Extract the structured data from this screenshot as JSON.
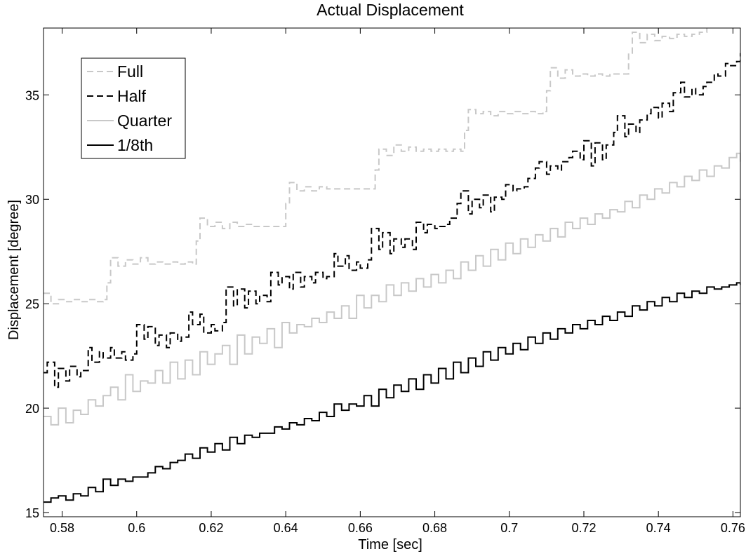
{
  "chart_data": {
    "type": "line",
    "title": "Actual Displacement",
    "xlabel": "Time [sec]",
    "ylabel": "Displacement [degree]",
    "xlim": [
      0.575,
      0.762
    ],
    "ylim": [
      14.8,
      38.2
    ],
    "xticks": [
      0.58,
      0.6,
      0.62,
      0.64,
      0.66,
      0.68,
      0.7,
      0.72,
      0.74,
      0.76
    ],
    "xtick_labels": [
      "0.58",
      "0.6",
      "0.62",
      "0.64",
      "0.66",
      "0.68",
      "0.7",
      "0.72",
      "0.74",
      "0.76"
    ],
    "yticks": [
      15,
      20,
      25,
      30,
      35
    ],
    "ytick_labels": [
      "15",
      "20",
      "25",
      "30",
      "35"
    ],
    "grid": false,
    "legend_position": "top-left",
    "series": [
      {
        "name": "Full",
        "color": "#c8c8c8",
        "dash": "dashed",
        "x": [
          0.575,
          0.577,
          0.579,
          0.581,
          0.583,
          0.585,
          0.587,
          0.589,
          0.591,
          0.592,
          0.593,
          0.595,
          0.597,
          0.599,
          0.601,
          0.603,
          0.605,
          0.607,
          0.609,
          0.611,
          0.613,
          0.615,
          0.616,
          0.617,
          0.619,
          0.621,
          0.623,
          0.625,
          0.627,
          0.629,
          0.631,
          0.633,
          0.635,
          0.637,
          0.639,
          0.64,
          0.641,
          0.643,
          0.645,
          0.647,
          0.649,
          0.651,
          0.653,
          0.655,
          0.657,
          0.659,
          0.661,
          0.663,
          0.664,
          0.665,
          0.667,
          0.669,
          0.671,
          0.673,
          0.675,
          0.677,
          0.679,
          0.681,
          0.683,
          0.685,
          0.687,
          0.688,
          0.689,
          0.691,
          0.693,
          0.695,
          0.697,
          0.699,
          0.701,
          0.703,
          0.705,
          0.707,
          0.709,
          0.71,
          0.711,
          0.713,
          0.715,
          0.717,
          0.719,
          0.721,
          0.723,
          0.725,
          0.727,
          0.729,
          0.731,
          0.732,
          0.733,
          0.735,
          0.737,
          0.739,
          0.741,
          0.743,
          0.745,
          0.747,
          0.749,
          0.751,
          0.753
        ],
        "y": [
          25.5,
          25.0,
          25.2,
          25.1,
          25.2,
          25.1,
          25.2,
          25.1,
          25.2,
          26.0,
          27.2,
          26.8,
          27.1,
          26.9,
          27.2,
          26.9,
          27.0,
          26.9,
          27.0,
          26.9,
          27.0,
          26.9,
          28.0,
          29.1,
          28.7,
          28.9,
          28.6,
          28.9,
          28.7,
          28.8,
          28.7,
          28.7,
          28.7,
          28.7,
          28.7,
          29.8,
          30.8,
          30.4,
          30.6,
          30.4,
          30.6,
          30.5,
          30.5,
          30.5,
          30.5,
          30.5,
          30.5,
          30.5,
          31.4,
          32.4,
          32.1,
          32.6,
          32.3,
          32.5,
          32.3,
          32.4,
          32.3,
          32.4,
          32.3,
          32.4,
          32.3,
          33.3,
          34.3,
          34.1,
          34.2,
          34.0,
          34.2,
          34.1,
          34.2,
          34.1,
          34.2,
          34.1,
          34.2,
          35.2,
          36.3,
          35.8,
          36.2,
          35.9,
          36.0,
          35.9,
          36.0,
          35.9,
          36.0,
          36.0,
          36.0,
          37.0,
          38.0,
          37.5,
          37.9,
          37.6,
          37.8,
          37.7,
          37.9,
          37.8,
          37.9,
          38.0,
          38.2
        ]
      },
      {
        "name": "Half",
        "color": "#000000",
        "dash": "dashed",
        "x": [
          0.575,
          0.576,
          0.578,
          0.579,
          0.581,
          0.582,
          0.584,
          0.585,
          0.587,
          0.588,
          0.59,
          0.591,
          0.593,
          0.594,
          0.596,
          0.597,
          0.599,
          0.6,
          0.602,
          0.603,
          0.605,
          0.606,
          0.608,
          0.609,
          0.611,
          0.612,
          0.614,
          0.615,
          0.617,
          0.618,
          0.62,
          0.621,
          0.623,
          0.624,
          0.626,
          0.627,
          0.629,
          0.63,
          0.632,
          0.633,
          0.635,
          0.636,
          0.638,
          0.639,
          0.641,
          0.642,
          0.644,
          0.645,
          0.647,
          0.648,
          0.65,
          0.651,
          0.653,
          0.654,
          0.656,
          0.657,
          0.659,
          0.66,
          0.662,
          0.663,
          0.665,
          0.666,
          0.668,
          0.669,
          0.671,
          0.672,
          0.674,
          0.675,
          0.677,
          0.678,
          0.68,
          0.681,
          0.683,
          0.684,
          0.686,
          0.687,
          0.689,
          0.69,
          0.692,
          0.693,
          0.695,
          0.696,
          0.698,
          0.699,
          0.701,
          0.702,
          0.704,
          0.705,
          0.707,
          0.708,
          0.71,
          0.711,
          0.713,
          0.714,
          0.716,
          0.717,
          0.719,
          0.72,
          0.722,
          0.723,
          0.725,
          0.726,
          0.728,
          0.729,
          0.731,
          0.732,
          0.734,
          0.735,
          0.737,
          0.738,
          0.74,
          0.741,
          0.743,
          0.744,
          0.746,
          0.747,
          0.749,
          0.75,
          0.752,
          0.753,
          0.755,
          0.756,
          0.758,
          0.759,
          0.761,
          0.762
        ],
        "y": [
          21.7,
          22.2,
          21.0,
          21.9,
          21.3,
          22.0,
          21.5,
          21.8,
          22.9,
          22.2,
          22.7,
          22.4,
          22.9,
          22.4,
          22.7,
          22.3,
          22.6,
          24.0,
          23.3,
          23.9,
          23.0,
          23.5,
          22.9,
          23.6,
          23.2,
          23.4,
          24.6,
          24.0,
          24.5,
          23.6,
          24.0,
          23.7,
          24.1,
          25.8,
          24.9,
          25.7,
          24.8,
          25.6,
          25.0,
          25.4,
          25.1,
          26.5,
          25.9,
          26.3,
          25.7,
          26.5,
          25.8,
          26.3,
          26.0,
          26.5,
          26.2,
          26.3,
          27.4,
          26.8,
          27.3,
          26.6,
          27.0,
          26.7,
          27.1,
          28.6,
          27.6,
          28.4,
          27.4,
          28.1,
          27.7,
          28.1,
          27.6,
          28.9,
          28.4,
          28.8,
          28.6,
          28.7,
          28.8,
          29.1,
          29.8,
          30.4,
          29.3,
          30.0,
          29.6,
          30.2,
          29.4,
          30.1,
          30.0,
          30.7,
          30.4,
          30.5,
          30.6,
          31.0,
          31.5,
          31.8,
          31.2,
          31.6,
          31.4,
          31.8,
          32.0,
          32.3,
          31.9,
          32.8,
          31.6,
          32.7,
          31.9,
          32.6,
          33.2,
          34.0,
          33.0,
          33.6,
          33.2,
          33.8,
          34.1,
          34.4,
          33.9,
          34.6,
          34.2,
          35.1,
          35.6,
          34.9,
          35.3,
          35.0,
          35.4,
          35.6,
          36.0,
          35.9,
          36.5,
          36.4,
          36.6,
          37.0
        ],
        "y_note": "values sampled along the dashed black trace"
      },
      {
        "name": "Quarter",
        "color": "#c8c8c8",
        "dash": "solid",
        "x": [
          0.575,
          0.577,
          0.579,
          0.581,
          0.583,
          0.585,
          0.587,
          0.589,
          0.591,
          0.593,
          0.595,
          0.597,
          0.599,
          0.601,
          0.603,
          0.605,
          0.607,
          0.609,
          0.611,
          0.613,
          0.615,
          0.617,
          0.619,
          0.621,
          0.623,
          0.625,
          0.627,
          0.629,
          0.631,
          0.633,
          0.635,
          0.637,
          0.639,
          0.641,
          0.643,
          0.645,
          0.647,
          0.649,
          0.651,
          0.653,
          0.655,
          0.657,
          0.659,
          0.661,
          0.663,
          0.665,
          0.667,
          0.669,
          0.671,
          0.673,
          0.675,
          0.677,
          0.679,
          0.681,
          0.683,
          0.685,
          0.687,
          0.689,
          0.691,
          0.693,
          0.695,
          0.697,
          0.699,
          0.701,
          0.703,
          0.705,
          0.707,
          0.709,
          0.711,
          0.713,
          0.715,
          0.717,
          0.719,
          0.721,
          0.723,
          0.725,
          0.727,
          0.729,
          0.731,
          0.733,
          0.735,
          0.737,
          0.739,
          0.741,
          0.743,
          0.745,
          0.747,
          0.749,
          0.751,
          0.753,
          0.755,
          0.757,
          0.759,
          0.761,
          0.762
        ],
        "y": [
          19.6,
          19.2,
          20.0,
          19.3,
          19.9,
          19.7,
          20.4,
          20.1,
          20.6,
          21.0,
          20.4,
          21.6,
          20.8,
          21.3,
          21.2,
          21.8,
          21.2,
          22.2,
          21.4,
          22.3,
          21.6,
          22.7,
          22.1,
          22.6,
          23.0,
          22.1,
          23.5,
          22.6,
          23.4,
          23.1,
          23.8,
          22.9,
          24.1,
          23.6,
          24.0,
          23.9,
          24.3,
          24.1,
          24.6,
          24.3,
          24.9,
          24.3,
          25.4,
          24.8,
          25.4,
          25.1,
          25.9,
          25.4,
          26.0,
          25.6,
          26.2,
          25.8,
          26.4,
          26.0,
          26.6,
          26.2,
          27.0,
          26.6,
          27.3,
          26.8,
          27.6,
          27.1,
          27.9,
          27.4,
          28.1,
          27.7,
          28.3,
          28.0,
          28.6,
          28.2,
          28.9,
          28.6,
          29.1,
          28.8,
          29.3,
          29.1,
          29.5,
          29.4,
          29.9,
          29.6,
          30.2,
          30.0,
          30.5,
          30.3,
          30.8,
          30.6,
          31.1,
          30.9,
          31.4,
          31.1,
          31.6,
          31.5,
          32.0,
          32.2,
          31.8
        ]
      },
      {
        "name": "1/8th",
        "color": "#000000",
        "dash": "solid",
        "x": [
          0.575,
          0.577,
          0.579,
          0.581,
          0.583,
          0.585,
          0.587,
          0.589,
          0.591,
          0.593,
          0.595,
          0.597,
          0.599,
          0.601,
          0.603,
          0.605,
          0.607,
          0.609,
          0.611,
          0.613,
          0.615,
          0.617,
          0.619,
          0.621,
          0.623,
          0.625,
          0.627,
          0.629,
          0.631,
          0.633,
          0.635,
          0.637,
          0.639,
          0.641,
          0.643,
          0.645,
          0.647,
          0.649,
          0.651,
          0.653,
          0.655,
          0.657,
          0.659,
          0.661,
          0.663,
          0.665,
          0.667,
          0.669,
          0.671,
          0.673,
          0.675,
          0.677,
          0.679,
          0.681,
          0.683,
          0.685,
          0.687,
          0.689,
          0.691,
          0.693,
          0.695,
          0.697,
          0.699,
          0.701,
          0.703,
          0.705,
          0.707,
          0.709,
          0.711,
          0.713,
          0.715,
          0.717,
          0.719,
          0.721,
          0.723,
          0.725,
          0.727,
          0.729,
          0.731,
          0.733,
          0.735,
          0.737,
          0.739,
          0.741,
          0.743,
          0.745,
          0.747,
          0.749,
          0.751,
          0.753,
          0.755,
          0.757,
          0.759,
          0.761,
          0.762
        ],
        "y": [
          15.5,
          15.7,
          15.8,
          15.6,
          15.9,
          15.8,
          16.2,
          16.0,
          16.6,
          16.3,
          16.6,
          16.5,
          16.7,
          16.7,
          16.9,
          17.2,
          17.1,
          17.4,
          17.5,
          17.8,
          17.6,
          18.1,
          17.9,
          18.3,
          18.0,
          18.6,
          18.3,
          18.7,
          18.6,
          18.8,
          18.8,
          19.1,
          19.0,
          19.3,
          19.2,
          19.5,
          19.4,
          19.8,
          19.6,
          20.2,
          19.9,
          20.2,
          20.1,
          20.6,
          20.1,
          20.9,
          20.5,
          21.1,
          20.8,
          21.4,
          20.9,
          21.6,
          21.2,
          21.9,
          21.4,
          22.2,
          21.7,
          22.4,
          22.0,
          22.7,
          22.3,
          22.9,
          22.6,
          23.1,
          22.8,
          23.4,
          23.1,
          23.6,
          23.3,
          23.8,
          23.6,
          24.0,
          23.8,
          24.2,
          24.0,
          24.4,
          24.2,
          24.6,
          24.4,
          24.9,
          24.7,
          25.1,
          24.9,
          25.3,
          25.1,
          25.5,
          25.3,
          25.6,
          25.5,
          25.8,
          25.7,
          25.8,
          25.9,
          26.0,
          25.9
        ]
      }
    ]
  }
}
